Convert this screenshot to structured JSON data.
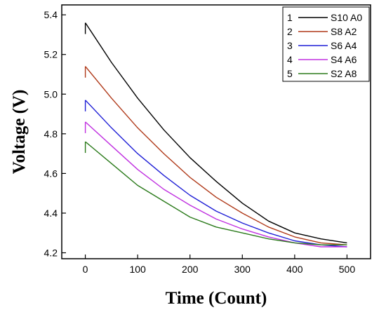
{
  "chart_data": {
    "type": "line",
    "title": "",
    "xlabel": "Time (Count)",
    "ylabel": "Voltage (V)",
    "xlim": [
      -45,
      545
    ],
    "ylim": [
      4.17,
      5.45
    ],
    "xticks": [
      0,
      100,
      200,
      300,
      400,
      500
    ],
    "yticks": [
      4.2,
      4.4,
      4.6,
      4.8,
      5.0,
      5.2,
      5.4
    ],
    "ytick_labels": [
      "4.2",
      "4.4",
      "4.6",
      "4.8",
      "5.0",
      "5.2",
      "5.4"
    ],
    "grid": false,
    "legend_position": "top-right",
    "series": [
      {
        "id": "1",
        "name": "S10 A0",
        "color": "#000000",
        "x": [
          0,
          50,
          100,
          150,
          200,
          250,
          300,
          350,
          400,
          450,
          500
        ],
        "y": [
          5.36,
          5.16,
          4.98,
          4.82,
          4.68,
          4.56,
          4.45,
          4.36,
          4.3,
          4.27,
          4.25
        ]
      },
      {
        "id": "2",
        "name": "S8 A2",
        "color": "#b03a1a",
        "x": [
          0,
          50,
          100,
          150,
          200,
          250,
          300,
          350,
          400,
          450,
          500
        ],
        "y": [
          5.14,
          4.98,
          4.83,
          4.7,
          4.58,
          4.48,
          4.4,
          4.33,
          4.28,
          4.25,
          4.24
        ]
      },
      {
        "id": "3",
        "name": "S6 A4",
        "color": "#1f1fd6",
        "x": [
          0,
          50,
          100,
          150,
          200,
          250,
          300,
          350,
          400,
          450,
          500
        ],
        "y": [
          4.97,
          4.83,
          4.7,
          4.59,
          4.49,
          4.41,
          4.35,
          4.3,
          4.26,
          4.24,
          4.23
        ]
      },
      {
        "id": "4",
        "name": "S4 A6",
        "color": "#c030e0",
        "x": [
          0,
          50,
          100,
          150,
          200,
          250,
          300,
          350,
          400,
          450,
          500
        ],
        "y": [
          4.86,
          4.74,
          4.62,
          4.52,
          4.44,
          4.37,
          4.32,
          4.28,
          4.25,
          4.23,
          4.23
        ]
      },
      {
        "id": "5",
        "name": "S2 A8",
        "color": "#2a7a1a",
        "x": [
          0,
          50,
          100,
          150,
          200,
          250,
          300,
          350,
          400,
          450,
          500
        ],
        "y": [
          4.76,
          4.65,
          4.54,
          4.46,
          4.38,
          4.33,
          4.3,
          4.27,
          4.25,
          4.24,
          4.24
        ]
      }
    ]
  }
}
